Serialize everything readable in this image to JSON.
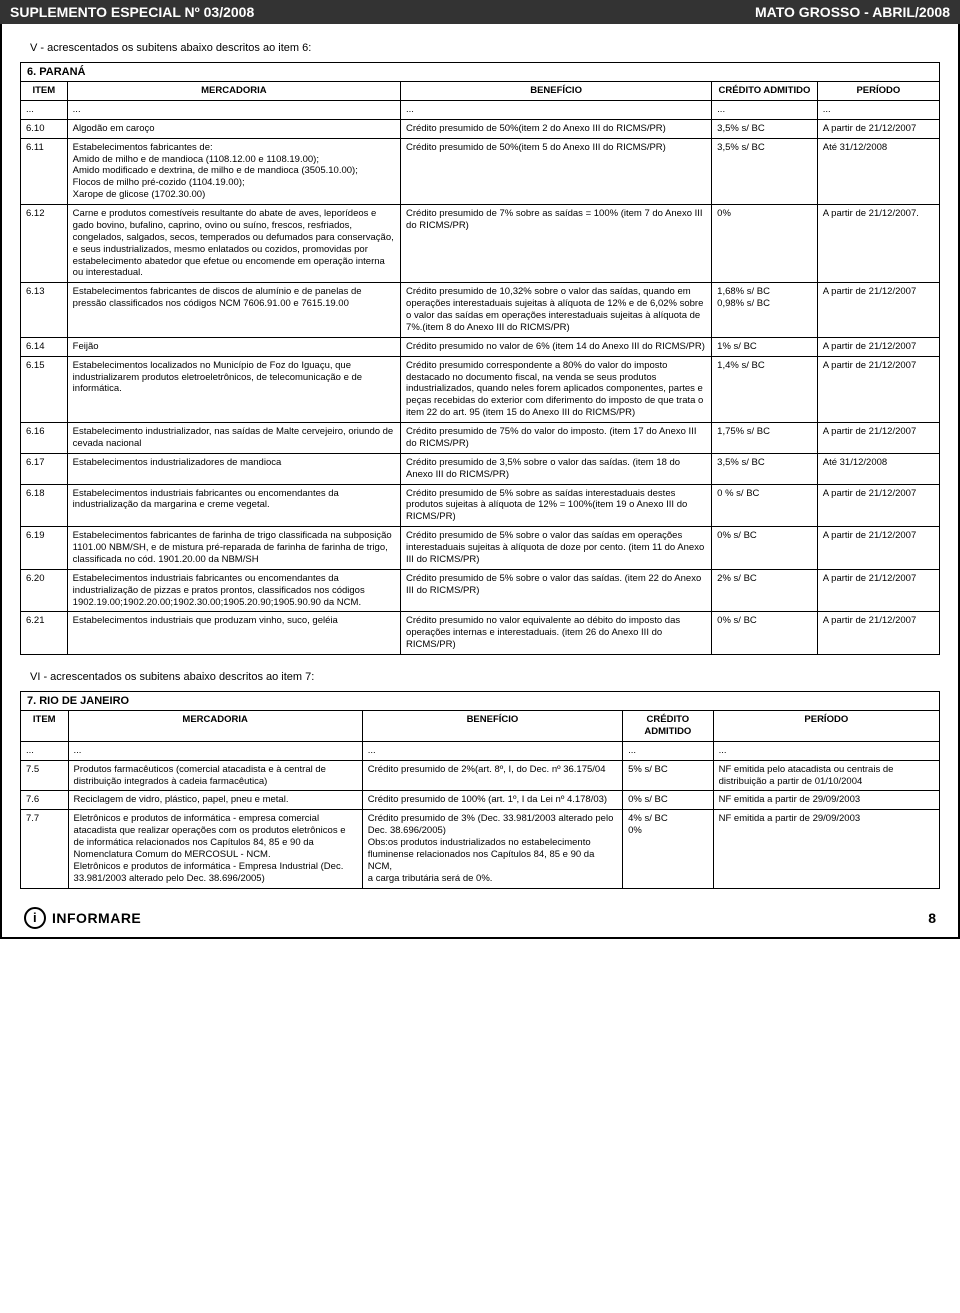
{
  "header": {
    "left": "SUPLEMENTO ESPECIAL Nº 03/2008",
    "right": "MATO GROSSO - ABRIL/2008"
  },
  "section5": {
    "title": "V - acrescentados os subitens abaixo descritos ao item 6:",
    "group": "6. PARANÁ",
    "columns": {
      "item": "ITEM",
      "mercadoria": "MERCADORIA",
      "beneficio": "BENEFÍCIO",
      "credito": "CRÉDITO ADMITIDO",
      "periodo": "PERÍODO"
    },
    "ellipsis": "...",
    "rows": [
      {
        "item": "6.10",
        "merc": "Algodão em caroço",
        "ben": "Crédito presumido de 50%(item 2 do Anexo III do RICMS/PR)",
        "cred": "3,5% s/ BC",
        "per": "A partir de 21/12/2007"
      },
      {
        "item": "6.11",
        "merc": "Estabelecimentos fabricantes de:\nAmido de milho e de mandioca (1108.12.00 e 1108.19.00);\nAmido modificado e dextrina, de milho e de mandioca (3505.10.00);\nFlocos de milho pré-cozido (1104.19.00);\nXarope de glicose (1702.30.00)",
        "ben": "Crédito presumido de 50%(item 5 do Anexo III do RICMS/PR)",
        "cred": "3,5% s/ BC",
        "per": "Até 31/12/2008"
      },
      {
        "item": "6.12",
        "merc": "Carne e produtos comestíveis resultante do abate de aves, leporídeos e gado bovino, bufalino, caprino, ovino ou suíno, frescos, resfriados, congelados, salgados, secos, temperados ou defumados para conservação, e seus industrializados, mesmo enlatados ou cozidos, promovidas por estabelecimento abatedor que efetue ou encomende em operação interna ou interestadual.",
        "ben": "Crédito presumido de 7% sobre as saídas = 100% (item 7 do Anexo III do RICMS/PR)",
        "cred": "0%",
        "per": "A partir de 21/12/2007."
      },
      {
        "item": "6.13",
        "merc": "Estabelecimentos fabricantes de discos de alumínio e de panelas de pressão classificados nos códigos NCM 7606.91.00 e 7615.19.00",
        "ben": "Crédito presumido de 10,32% sobre o valor das saídas, quando em operações interestaduais sujeitas à alíquota de 12% e de 6,02% sobre o valor das saídas em operações interestaduais sujeitas à alíquota de 7%.(item 8 do Anexo III do RICMS/PR)",
        "cred": "1,68% s/ BC\n0,98% s/ BC",
        "per": "A partir de 21/12/2007"
      },
      {
        "item": "6.14",
        "merc": "Feijão",
        "ben": "Crédito presumido no valor de 6% (item 14 do Anexo III do RICMS/PR)",
        "cred": "1% s/ BC",
        "per": "A partir de 21/12/2007"
      },
      {
        "item": "6.15",
        "merc": "Estabelecimentos localizados no Município de Foz do Iguaçu, que industrializarem produtos eletroeletrônicos, de telecomunicação e de informática.",
        "ben": "Crédito presumido correspondente a 80% do valor do imposto destacado no documento fiscal, na venda se seus produtos industrializados, quando neles forem aplicados componentes, partes e peças recebidas do exterior com diferimento do imposto de que trata o item 22 do art. 95 (item 15 do Anexo III do RICMS/PR)",
        "cred": "1,4% s/ BC",
        "per": "A partir de 21/12/2007"
      },
      {
        "item": "6.16",
        "merc": "Estabelecimento industrializador, nas saídas de Malte cervejeiro, oriundo de cevada nacional",
        "ben": "Crédito presumido de 75% do valor do imposto. (item 17 do Anexo III do RICMS/PR)",
        "cred": "1,75% s/ BC",
        "per": "A partir de 21/12/2007"
      },
      {
        "item": "6.17",
        "merc": "Estabelecimentos industrializadores de mandioca",
        "ben": "Crédito presumido de 3,5% sobre o valor das saídas. (item 18 do Anexo III do RICMS/PR)",
        "cred": "3,5% s/ BC",
        "per": "Até 31/12/2008"
      },
      {
        "item": "6.18",
        "merc": "Estabelecimentos industriais fabricantes ou encomendantes da industrialização da margarina e creme vegetal.",
        "ben": "Crédito presumido de 5% sobre as saídas interestaduais destes produtos sujeitas à alíquota de 12% = 100%(item 19 o Anexo III do RICMS/PR)",
        "cred": "0 % s/ BC",
        "per": "A partir de 21/12/2007"
      },
      {
        "item": "6.19",
        "merc": "Estabelecimentos fabricantes de farinha de trigo classificada na subposição 1101.00 NBM/SH, e de mistura pré-reparada de farinha de farinha de trigo, classificada no cód. 1901.20.00 da NBM/SH",
        "ben": "Crédito presumido de 5% sobre o valor das saídas em operações interestaduais sujeitas à alíquota de doze por cento. (item 11 do Anexo III do RICMS/PR)",
        "cred": "0% s/ BC",
        "per": "A partir de 21/12/2007"
      },
      {
        "item": "6.20",
        "merc": "Estabelecimentos industriais fabricantes ou encomendantes da industrialização de pizzas e pratos prontos, classificados nos códigos 1902.19.00;1902.20.00;1902.30.00;1905.20.90;1905.90.90 da NCM.",
        "ben": "Crédito presumido de 5% sobre o valor das saídas. (item 22 do Anexo III do RICMS/PR)",
        "cred": "2% s/ BC",
        "per": "A partir de 21/12/2007"
      },
      {
        "item": "6.21",
        "merc": "Estabelecimentos industriais que produzam vinho, suco, geléia",
        "ben": "Crédito presumido no valor equivalente ao débito do imposto das operações internas e interestaduais. (item 26 do Anexo III do RICMS/PR)",
        "cred": "0% s/ BC",
        "per": "A partir de 21/12/2007"
      }
    ]
  },
  "section6": {
    "title": "VI - acrescentados os subitens abaixo descritos ao item 7:",
    "group": "7. RIO DE JANEIRO",
    "columns": {
      "item": "ITEM",
      "mercadoria": "MERCADORIA",
      "beneficio": "BENEFÍCIO",
      "credito": "CRÉDITO ADMITIDO",
      "periodo": "PERÍODO"
    },
    "ellipsis": "...",
    "rows": [
      {
        "item": "7.5",
        "merc": "Produtos farmacêuticos (comercial atacadista e à central de distribuição integrados à cadeia farmacêutica)",
        "ben": "Crédito presumido de 2%(art. 8º, I, do Dec. nº 36.175/04",
        "cred": "5% s/ BC",
        "per": "NF emitida pelo atacadista ou centrais de distribuição a partir de 01/10/2004"
      },
      {
        "item": "7.6",
        "merc": "Reciclagem de vidro, plástico, papel, pneu e metal.",
        "ben": "Crédito presumido de 100% (art. 1º, I da Lei nº 4.178/03)",
        "cred": "0% s/ BC",
        "per": "NF emitida a partir de 29/09/2003"
      },
      {
        "item": "7.7",
        "merc": "Eletrônicos e produtos de informática - empresa comercial atacadista que realizar operações com os produtos eletrônicos e de informática relacionados nos Capítulos 84, 85 e 90 da Nomenclatura Comum do MERCOSUL - NCM.\nEletrônicos e produtos de informática - Empresa Industrial (Dec. 33.981/2003 alterado pelo Dec. 38.696/2005)",
        "ben": "Crédito presumido de 3% (Dec. 33.981/2003 alterado pelo Dec. 38.696/2005)\nObs:os produtos industrializados no estabelecimento fluminense relacionados nos Capítulos 84, 85 e 90 da NCM,\na carga tributária será de 0%.",
        "cred": "4% s/ BC\n0%",
        "per": "NF emitida a partir de 29/09/2003"
      }
    ]
  },
  "footer": {
    "brand": "INFORMARE",
    "page": "8"
  }
}
